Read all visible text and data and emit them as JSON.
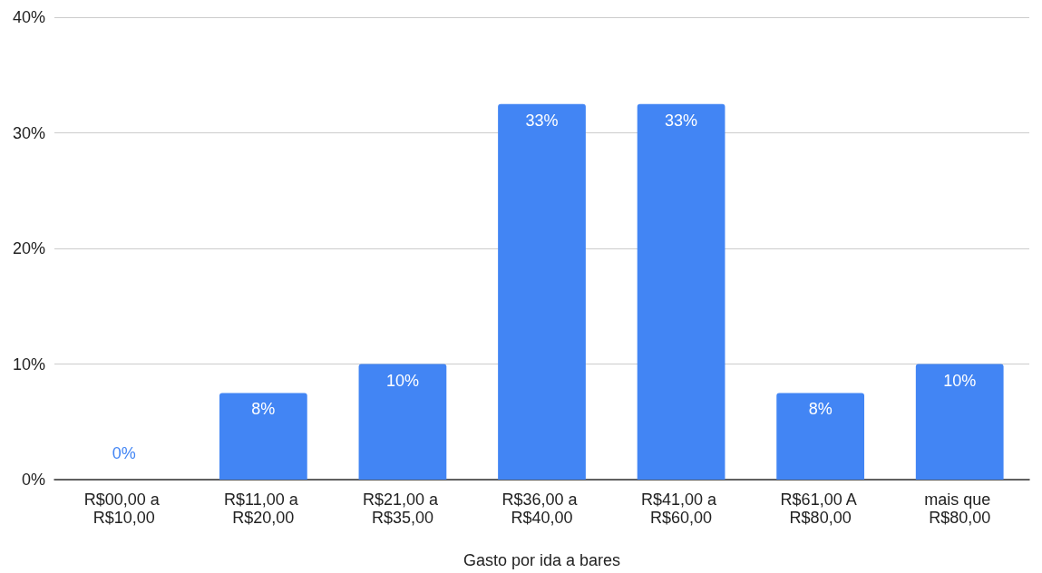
{
  "chart_data": {
    "type": "bar",
    "xlabel": "Gasto por ida a bares",
    "categories": [
      "R$00,00 a R$10,00",
      "R$11,00 a R$20,00",
      "R$21,00 a R$35,00",
      "R$36,00 a R$40,00",
      "R$41,00 a R$60,00",
      "R$61,00 A R$80,00",
      "mais que R$80,00"
    ],
    "values": [
      0,
      7.5,
      10,
      32.5,
      32.5,
      7.5,
      10
    ],
    "value_labels": [
      "0%",
      "8%",
      "10%",
      "33%",
      "33%",
      "8%",
      "10%"
    ],
    "color": "#4285f4",
    "ylim": [
      0,
      40
    ],
    "yticks": [
      {
        "value": 0,
        "label": "0%"
      },
      {
        "value": 10,
        "label": "10%"
      },
      {
        "value": 20,
        "label": "20%"
      },
      {
        "value": 30,
        "label": "30%"
      },
      {
        "value": 40,
        "label": "40%"
      }
    ],
    "grid": "y"
  }
}
